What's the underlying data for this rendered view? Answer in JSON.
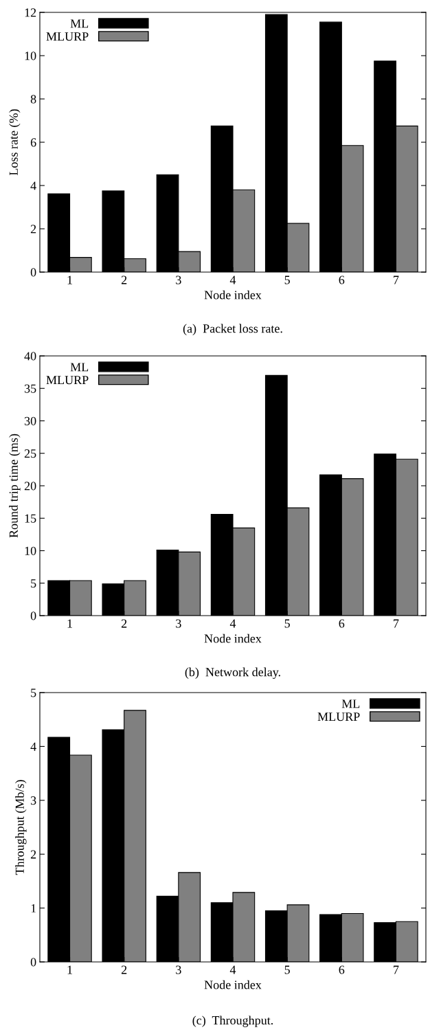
{
  "chart_data": [
    {
      "type": "bar",
      "categories": [
        "1",
        "2",
        "3",
        "4",
        "5",
        "6",
        "7"
      ],
      "xlabel": "Node index",
      "ylabel": "Loss rate (%)",
      "ylim": [
        0,
        12
      ],
      "yticks": [
        0,
        2,
        4,
        6,
        8,
        10,
        12
      ],
      "legend": "top left",
      "grid": false,
      "series": [
        {
          "name": "ML",
          "color": "#000000",
          "values": [
            3.62,
            3.75,
            4.5,
            6.75,
            11.9,
            11.55,
            9.75
          ]
        },
        {
          "name": "MLURP",
          "color": "#808080",
          "values": [
            0.68,
            0.62,
            0.95,
            3.8,
            2.25,
            5.85,
            6.75
          ]
        }
      ],
      "annotations": [
        "(a)  Packet loss rate."
      ]
    },
    {
      "type": "bar",
      "categories": [
        "1",
        "2",
        "3",
        "4",
        "5",
        "6",
        "7"
      ],
      "xlabel": "Node index",
      "ylabel": "Round trip time (ms)",
      "ylim": [
        0,
        40
      ],
      "yticks": [
        0,
        5,
        10,
        15,
        20,
        25,
        30,
        35,
        40
      ],
      "legend": "top left",
      "grid": false,
      "series": [
        {
          "name": "ML",
          "color": "#000000",
          "values": [
            5.4,
            4.9,
            10.1,
            15.6,
            37,
            21.7,
            24.9
          ]
        },
        {
          "name": "MLURP",
          "color": "#808080",
          "values": [
            5.4,
            5.4,
            9.8,
            13.5,
            16.6,
            21.1,
            24.1
          ]
        }
      ],
      "annotations": [
        "(b)  Network delay."
      ]
    },
    {
      "type": "bar",
      "categories": [
        "1",
        "2",
        "3",
        "4",
        "5",
        "6",
        "7"
      ],
      "xlabel": "Node index",
      "ylabel": "Throughput (Mb/s)",
      "ylim": [
        0,
        5
      ],
      "yticks": [
        0,
        1,
        2,
        3,
        4,
        5
      ],
      "legend": "top right",
      "grid": false,
      "series": [
        {
          "name": "ML",
          "color": "#000000",
          "values": [
            4.17,
            4.31,
            1.22,
            1.1,
            0.95,
            0.88,
            0.73
          ]
        },
        {
          "name": "MLURP",
          "color": "#808080",
          "values": [
            3.84,
            4.67,
            1.66,
            1.29,
            1.06,
            0.9,
            0.75
          ]
        }
      ],
      "annotations": [
        "(c)  Throughput."
      ]
    }
  ]
}
